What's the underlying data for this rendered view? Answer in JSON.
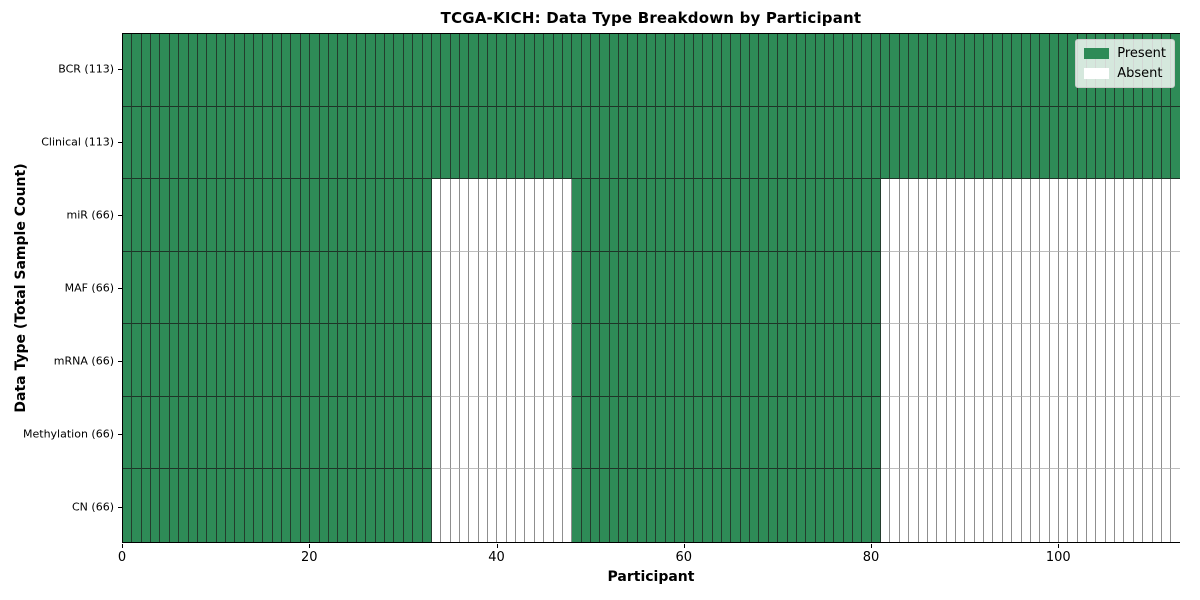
{
  "chart_data": {
    "type": "heatmap",
    "title": "TCGA-KICH: Data Type Breakdown by Participant",
    "xlabel": "Participant",
    "ylabel": "Data Type (Total Sample Count)",
    "x_ticks": [
      0,
      20,
      40,
      60,
      80,
      100
    ],
    "x_range": [
      0,
      113
    ],
    "n_participants": 113,
    "grid": false,
    "legend": {
      "position": "upper right",
      "entries": [
        {
          "label": "Present",
          "color": "#2e8b57"
        },
        {
          "label": "Absent",
          "color": "#ffffff"
        }
      ]
    },
    "rows": [
      {
        "label": "BCR (113)",
        "name": "BCR",
        "total_samples": 113,
        "present_ranges": [
          [
            0,
            112
          ]
        ]
      },
      {
        "label": "Clinical (113)",
        "name": "Clinical",
        "total_samples": 113,
        "present_ranges": [
          [
            0,
            112
          ]
        ]
      },
      {
        "label": "miR (66)",
        "name": "miR",
        "total_samples": 66,
        "present_ranges": [
          [
            0,
            32
          ],
          [
            48,
            80
          ]
        ]
      },
      {
        "label": "MAF (66)",
        "name": "MAF",
        "total_samples": 66,
        "present_ranges": [
          [
            0,
            32
          ],
          [
            48,
            80
          ]
        ]
      },
      {
        "label": "mRNA (66)",
        "name": "mRNA",
        "total_samples": 66,
        "present_ranges": [
          [
            0,
            32
          ],
          [
            48,
            80
          ]
        ]
      },
      {
        "label": "Methylation (66)",
        "name": "Methylation",
        "total_samples": 66,
        "present_ranges": [
          [
            0,
            32
          ],
          [
            48,
            80
          ]
        ]
      },
      {
        "label": "CN (66)",
        "name": "CN",
        "total_samples": 66,
        "present_ranges": [
          [
            0,
            32
          ],
          [
            48,
            80
          ]
        ]
      }
    ],
    "colors": {
      "present": "#2e8b57",
      "absent": "#ffffff",
      "present_edge": "#233c2d",
      "present_divider": "#1d3527",
      "absent_edge": "#8f8f8f",
      "absent_divider": "#bdbdbd",
      "spine": "#000000"
    }
  }
}
